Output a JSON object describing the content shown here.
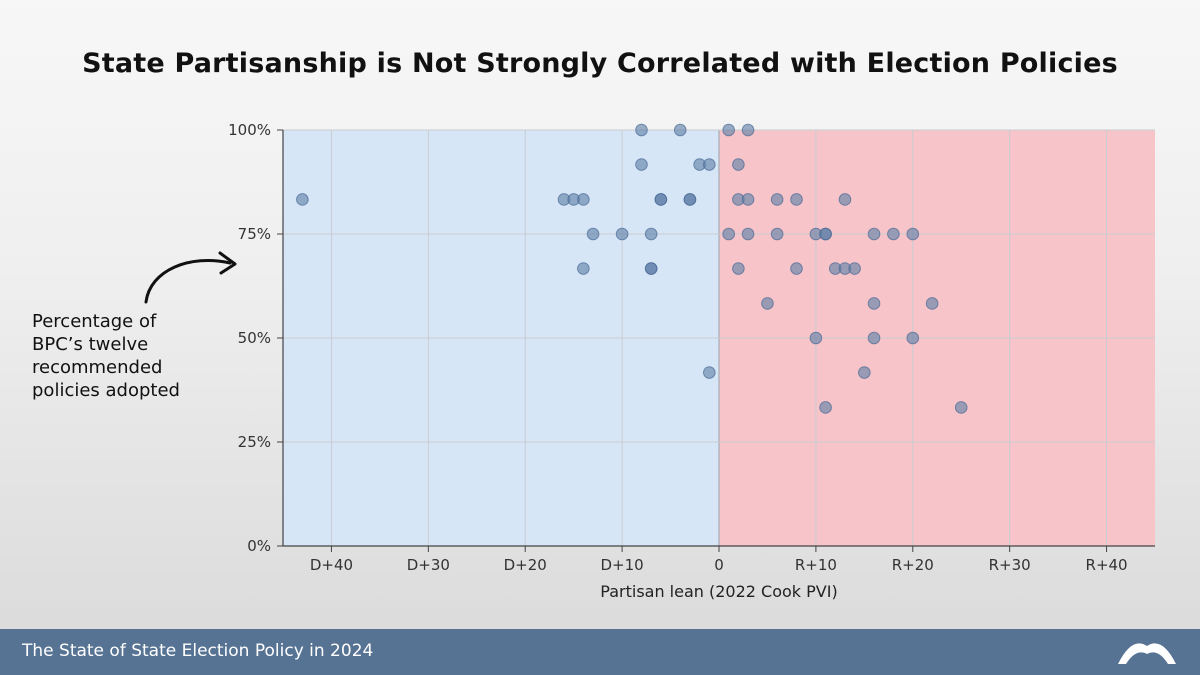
{
  "title": "State Partisanship is Not Strongly Correlated with Election Policies",
  "annotation": {
    "lines": [
      "Percentage of",
      "BPC’s twelve",
      "recommended",
      "policies adopted"
    ]
  },
  "footer": {
    "text": "The State of State Election Policy in 2024"
  },
  "colors": {
    "dem_region": "#d7e6f7",
    "rep_region": "#f6c4c9",
    "point": "#5f7fa8",
    "footer": "#577394"
  },
  "chart_data": {
    "type": "scatter",
    "xlabel": "Partisan lean (2022 Cook PVI)",
    "ylabel": "",
    "x_note": "negative = Democratic lean (D+), positive = Republican lean (R+)",
    "xlim": [
      -45,
      45
    ],
    "ylim": [
      0,
      100
    ],
    "x_ticks": [
      {
        "value": -40,
        "label": "D+40"
      },
      {
        "value": -30,
        "label": "D+30"
      },
      {
        "value": -20,
        "label": "D+20"
      },
      {
        "value": -10,
        "label": "D+10"
      },
      {
        "value": 0,
        "label": "0"
      },
      {
        "value": 10,
        "label": "R+10"
      },
      {
        "value": 20,
        "label": "R+20"
      },
      {
        "value": 30,
        "label": "R+30"
      },
      {
        "value": 40,
        "label": "R+40"
      }
    ],
    "y_ticks": [
      {
        "value": 0,
        "label": "0%"
      },
      {
        "value": 25,
        "label": "25%"
      },
      {
        "value": 50,
        "label": "50%"
      },
      {
        "value": 75,
        "label": "75%"
      },
      {
        "value": 100,
        "label": "100%"
      }
    ],
    "grid": true,
    "points": [
      {
        "x": -43,
        "y": 83.3
      },
      {
        "x": -16,
        "y": 83.3
      },
      {
        "x": -15,
        "y": 83.3
      },
      {
        "x": -14,
        "y": 83.3
      },
      {
        "x": -14,
        "y": 66.7
      },
      {
        "x": -13,
        "y": 75
      },
      {
        "x": -10,
        "y": 75
      },
      {
        "x": -8,
        "y": 100
      },
      {
        "x": -8,
        "y": 91.7
      },
      {
        "x": -7,
        "y": 75
      },
      {
        "x": -7,
        "y": 66.7
      },
      {
        "x": -7,
        "y": 66.7
      },
      {
        "x": -6,
        "y": 83.3
      },
      {
        "x": -6,
        "y": 83.3
      },
      {
        "x": -4,
        "y": 100
      },
      {
        "x": -3,
        "y": 83.3
      },
      {
        "x": -3,
        "y": 83.3
      },
      {
        "x": -2,
        "y": 91.7
      },
      {
        "x": -1,
        "y": 91.7
      },
      {
        "x": -1,
        "y": 41.7
      },
      {
        "x": 1,
        "y": 100
      },
      {
        "x": 1,
        "y": 75
      },
      {
        "x": 2,
        "y": 91.7
      },
      {
        "x": 2,
        "y": 83.3
      },
      {
        "x": 2,
        "y": 66.7
      },
      {
        "x": 3,
        "y": 100
      },
      {
        "x": 3,
        "y": 83.3
      },
      {
        "x": 3,
        "y": 75
      },
      {
        "x": 5,
        "y": 58.3
      },
      {
        "x": 6,
        "y": 83.3
      },
      {
        "x": 6,
        "y": 75
      },
      {
        "x": 8,
        "y": 83.3
      },
      {
        "x": 8,
        "y": 66.7
      },
      {
        "x": 10,
        "y": 75
      },
      {
        "x": 10,
        "y": 50
      },
      {
        "x": 11,
        "y": 75
      },
      {
        "x": 11,
        "y": 75
      },
      {
        "x": 11,
        "y": 33.3
      },
      {
        "x": 12,
        "y": 66.7
      },
      {
        "x": 13,
        "y": 83.3
      },
      {
        "x": 13,
        "y": 66.7
      },
      {
        "x": 14,
        "y": 66.7
      },
      {
        "x": 15,
        "y": 41.7
      },
      {
        "x": 16,
        "y": 75
      },
      {
        "x": 16,
        "y": 58.3
      },
      {
        "x": 16,
        "y": 50
      },
      {
        "x": 18,
        "y": 75
      },
      {
        "x": 20,
        "y": 75
      },
      {
        "x": 20,
        "y": 50
      },
      {
        "x": 22,
        "y": 58.3
      },
      {
        "x": 25,
        "y": 33.3
      }
    ]
  }
}
